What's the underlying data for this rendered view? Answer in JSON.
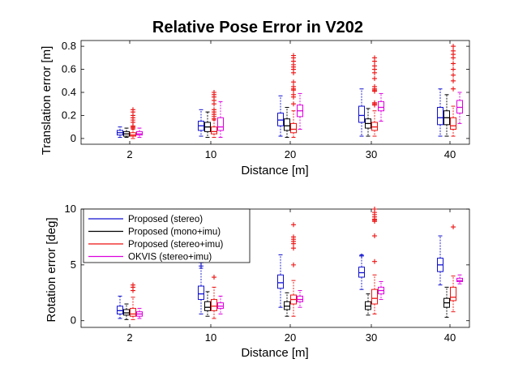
{
  "title": "Relative Pose Error in V202",
  "chart_data": [
    {
      "type": "box",
      "title": "Relative Pose Error in V202",
      "xlabel": "Distance [m]",
      "ylabel": "Translation error [m]",
      "ylim": [
        -0.05,
        0.85
      ],
      "yticks": [
        0,
        0.2,
        0.4,
        0.6,
        0.8
      ],
      "ytick_labels": [
        "0",
        "0.2",
        "0.4",
        "0.6",
        "0.8"
      ],
      "categories": [
        "2",
        "10",
        "20",
        "30",
        "40"
      ],
      "series": [
        {
          "name": "Proposed (stereo)",
          "color": "#1010d0",
          "boxes": [
            {
              "whislo": 0.01,
              "q1": 0.03,
              "med": 0.05,
              "q3": 0.07,
              "whishi": 0.1,
              "fliers": []
            },
            {
              "whislo": 0.02,
              "q1": 0.07,
              "med": 0.11,
              "q3": 0.15,
              "whishi": 0.25,
              "fliers": []
            },
            {
              "whislo": 0.02,
              "q1": 0.11,
              "med": 0.16,
              "q3": 0.22,
              "whishi": 0.37,
              "fliers": []
            },
            {
              "whislo": 0.02,
              "q1": 0.14,
              "med": 0.2,
              "q3": 0.28,
              "whishi": 0.43,
              "fliers": []
            },
            {
              "whislo": 0.02,
              "q1": 0.12,
              "med": 0.18,
              "q3": 0.27,
              "whishi": 0.43,
              "fliers": []
            }
          ]
        },
        {
          "name": "Proposed (mono+imu)",
          "color": "#000000",
          "boxes": [
            {
              "whislo": 0.01,
              "q1": 0.02,
              "med": 0.04,
              "q3": 0.06,
              "whishi": 0.09,
              "fliers": []
            },
            {
              "whislo": 0.01,
              "q1": 0.06,
              "med": 0.1,
              "q3": 0.14,
              "whishi": 0.23,
              "fliers": []
            },
            {
              "whislo": 0.01,
              "q1": 0.07,
              "med": 0.11,
              "q3": 0.17,
              "whishi": 0.27,
              "fliers": []
            },
            {
              "whislo": 0.02,
              "q1": 0.09,
              "med": 0.13,
              "q3": 0.17,
              "whishi": 0.26,
              "fliers": []
            },
            {
              "whislo": 0.02,
              "q1": 0.12,
              "med": 0.18,
              "q3": 0.24,
              "whishi": 0.38,
              "fliers": []
            }
          ]
        },
        {
          "name": "Proposed (stereo+imu)",
          "color": "#ee1111",
          "boxes": [
            {
              "whislo": 0.0,
              "q1": 0.02,
              "med": 0.03,
              "q3": 0.05,
              "whishi": 0.08,
              "fliers": [
                0.09,
                0.1,
                0.11
              ]
            },
            {
              "whislo": 0.01,
              "q1": 0.04,
              "med": 0.06,
              "q3": 0.1,
              "whishi": 0.16,
              "fliers": [
                0.17,
                0.19,
                0.21,
                0.23
              ]
            },
            {
              "whislo": 0.01,
              "q1": 0.05,
              "med": 0.08,
              "q3": 0.13,
              "whishi": 0.24,
              "fliers": [
                0.3,
                0.36,
                0.38,
                0.42,
                0.43,
                0.45,
                0.49
              ]
            },
            {
              "whislo": 0.02,
              "q1": 0.07,
              "med": 0.1,
              "q3": 0.14,
              "whishi": 0.24,
              "fliers": [
                0.29,
                0.3,
                0.31
              ]
            },
            {
              "whislo": 0.02,
              "q1": 0.08,
              "med": 0.11,
              "q3": 0.18,
              "whishi": 0.28,
              "fliers": []
            }
          ]
        },
        {
          "name": "OKVIS (stereo+imu)",
          "color": "#dd00dd",
          "boxes": [
            {
              "whislo": 0.01,
              "q1": 0.03,
              "med": 0.04,
              "q3": 0.06,
              "whishi": 0.09,
              "fliers": []
            },
            {
              "whislo": 0.01,
              "q1": 0.07,
              "med": 0.1,
              "q3": 0.18,
              "whishi": 0.32,
              "fliers": []
            },
            {
              "whislo": 0.08,
              "q1": 0.19,
              "med": 0.24,
              "q3": 0.29,
              "whishi": 0.39,
              "fliers": []
            },
            {
              "whislo": 0.15,
              "q1": 0.24,
              "med": 0.27,
              "q3": 0.32,
              "whishi": 0.39,
              "fliers": []
            },
            {
              "whislo": 0.13,
              "q1": 0.22,
              "med": 0.27,
              "q3": 0.33,
              "whishi": 0.4,
              "fliers": []
            }
          ]
        }
      ],
      "extra_fliers": [
        {
          "series": 2,
          "category": 0,
          "values": [
            0.14,
            0.16,
            0.18,
            0.2,
            0.23,
            0.25
          ]
        },
        {
          "series": 2,
          "category": 2,
          "values": [
            0.57,
            0.6,
            0.62,
            0.64,
            0.67,
            0.7,
            0.72
          ]
        },
        {
          "series": 2,
          "category": 3,
          "values": [
            0.41,
            0.42,
            0.43,
            0.45,
            0.52,
            0.57,
            0.6,
            0.63,
            0.67,
            0.7
          ]
        },
        {
          "series": 2,
          "category": 4,
          "values": [
            0.43,
            0.5,
            0.55,
            0.6,
            0.65,
            0.7,
            0.73,
            0.76,
            0.8
          ]
        },
        {
          "series": 2,
          "category": 1,
          "values": [
            0.25,
            0.3,
            0.33,
            0.36,
            0.38,
            0.4
          ]
        }
      ]
    },
    {
      "type": "box",
      "xlabel": "Distance [m]",
      "ylabel": "Rotation error [deg]",
      "ylim": [
        -0.6,
        10
      ],
      "yticks": [
        0,
        5,
        10
      ],
      "ytick_labels": [
        "0",
        "5",
        "10"
      ],
      "categories": [
        "2",
        "10",
        "20",
        "30",
        "40"
      ],
      "series": [
        {
          "name": "Proposed (stereo)",
          "color": "#1010d0",
          "boxes": [
            {
              "whislo": 0.2,
              "q1": 0.6,
              "med": 0.9,
              "q3": 1.3,
              "whishi": 2.2,
              "fliers": []
            },
            {
              "whislo": 0.6,
              "q1": 1.9,
              "med": 2.4,
              "q3": 3.1,
              "whishi": 4.7,
              "fliers": []
            },
            {
              "whislo": 1.2,
              "q1": 2.9,
              "med": 3.4,
              "q3": 4.1,
              "whishi": 5.9,
              "fliers": []
            },
            {
              "whislo": 2.8,
              "q1": 3.9,
              "med": 4.3,
              "q3": 4.8,
              "whishi": 5.9,
              "fliers": []
            },
            {
              "whislo": 3.2,
              "q1": 4.4,
              "med": 5.0,
              "q3": 5.6,
              "whishi": 7.6,
              "fliers": []
            }
          ]
        },
        {
          "name": "Proposed (mono+imu)",
          "color": "#000000",
          "boxes": [
            {
              "whislo": 0.1,
              "q1": 0.5,
              "med": 0.7,
              "q3": 1.0,
              "whishi": 1.5,
              "fliers": []
            },
            {
              "whislo": 0.4,
              "q1": 0.9,
              "med": 1.2,
              "q3": 1.7,
              "whishi": 2.6,
              "fliers": []
            },
            {
              "whislo": 0.4,
              "q1": 1.0,
              "med": 1.3,
              "q3": 1.7,
              "whishi": 2.5,
              "fliers": []
            },
            {
              "whislo": 0.5,
              "q1": 1.0,
              "med": 1.3,
              "q3": 1.7,
              "whishi": 2.4,
              "fliers": []
            },
            {
              "whislo": 0.3,
              "q1": 1.2,
              "med": 1.6,
              "q3": 2.0,
              "whishi": 3.0,
              "fliers": []
            }
          ]
        },
        {
          "name": "Proposed (stereo+imu)",
          "color": "#ee1111",
          "boxes": [
            {
              "whislo": 0.1,
              "q1": 0.4,
              "med": 0.6,
              "q3": 1.1,
              "whishi": 2.1,
              "fliers": [
                2.7,
                3.0,
                3.2
              ]
            },
            {
              "whislo": 0.2,
              "q1": 0.9,
              "med": 1.3,
              "q3": 1.9,
              "whishi": 3.0,
              "fliers": [
                3.9
              ]
            },
            {
              "whislo": 0.4,
              "q1": 1.5,
              "med": 1.9,
              "q3": 2.3,
              "whishi": 3.6,
              "fliers": [
                5.0
              ]
            },
            {
              "whislo": 0.6,
              "q1": 1.5,
              "med": 2.0,
              "q3": 2.8,
              "whishi": 4.1,
              "fliers": [
                5.3
              ]
            },
            {
              "whislo": 0.8,
              "q1": 1.8,
              "med": 2.1,
              "q3": 3.0,
              "whishi": 4.0,
              "fliers": []
            }
          ]
        },
        {
          "name": "OKVIS (stereo+imu)",
          "color": "#dd00dd",
          "boxes": [
            {
              "whislo": 0.2,
              "q1": 0.4,
              "med": 0.6,
              "q3": 0.8,
              "whishi": 1.1,
              "fliers": []
            },
            {
              "whislo": 0.6,
              "q1": 1.1,
              "med": 1.3,
              "q3": 1.6,
              "whishi": 2.2,
              "fliers": []
            },
            {
              "whislo": 1.2,
              "q1": 1.7,
              "med": 1.9,
              "q3": 2.2,
              "whishi": 2.7,
              "fliers": []
            },
            {
              "whislo": 1.9,
              "q1": 2.4,
              "med": 2.7,
              "q3": 3.0,
              "whishi": 3.5,
              "fliers": []
            },
            {
              "whislo": 3.3,
              "q1": 3.5,
              "med": 3.6,
              "q3": 3.8,
              "whishi": 4.1,
              "fliers": []
            }
          ]
        }
      ],
      "extra_fliers": [
        {
          "series": 0,
          "category": 1,
          "values": [
            4.9,
            5.2
          ]
        },
        {
          "series": 2,
          "category": 2,
          "values": [
            6.5,
            6.9,
            7.1,
            7.3,
            7.5,
            8.6
          ]
        },
        {
          "series": 2,
          "category": 3,
          "values": [
            8.9,
            9.0,
            9.1,
            9.3,
            9.5,
            9.7,
            10.0,
            7.6
          ]
        },
        {
          "series": 2,
          "category": 4,
          "values": [
            8.4
          ]
        },
        {
          "series": 0,
          "category": 3,
          "values": [
            5.8
          ]
        }
      ]
    }
  ],
  "legend": {
    "placement": "top-left of lower plot",
    "entries": [
      {
        "label": "Proposed (stereo)",
        "color": "#1010d0"
      },
      {
        "label": "Proposed (mono+imu)",
        "color": "#000000"
      },
      {
        "label": "Proposed (stereo+imu)",
        "color": "#ee1111"
      },
      {
        "label": "OKVIS (stereo+imu)",
        "color": "#dd00dd"
      }
    ]
  }
}
